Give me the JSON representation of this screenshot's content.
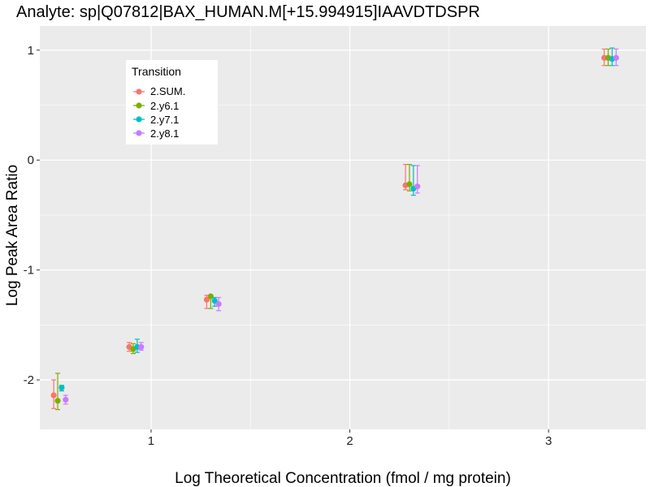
{
  "chart_data": {
    "type": "scatter",
    "title": "Analyte: sp|Q07812|BAX_HUMAN.M[+15.994915]IAAVDTDSPR",
    "xlabel": "Log Theoretical Concentration (fmol / mg protein)",
    "ylabel": "Log Peak Area Ratio",
    "xlim": [
      0.44,
      3.49
    ],
    "ylim": [
      -2.45,
      1.22
    ],
    "x_ticks": [
      1,
      2,
      3
    ],
    "x_tick_labels": [
      "1",
      "2",
      "3"
    ],
    "y_ticks": [
      -2,
      -1,
      0,
      1
    ],
    "y_tick_labels": [
      "-2",
      "-1",
      "0",
      "1"
    ],
    "grid": true,
    "legend": {
      "title": "Transition",
      "position": "top-left",
      "entries": [
        "2.SUM.",
        "2.y6.1",
        "2.y7.1",
        "2.y8.1"
      ]
    },
    "series": [
      {
        "name": "2.SUM.",
        "color": "#F8766D",
        "points": [
          {
            "x": 0.51,
            "y": -2.14,
            "ymin": -2.26,
            "ymax": -2.0
          },
          {
            "x": 0.89,
            "y": -1.7,
            "ymin": -1.74,
            "ymax": -1.66
          },
          {
            "x": 1.28,
            "y": -1.27,
            "ymin": -1.35,
            "ymax": -1.23
          },
          {
            "x": 2.28,
            "y": -0.23,
            "ymin": -0.27,
            "ymax": -0.04
          },
          {
            "x": 3.28,
            "y": 0.93,
            "ymin": 0.86,
            "ymax": 1.01
          }
        ]
      },
      {
        "name": "2.y6.1",
        "color": "#7CAE00",
        "points": [
          {
            "x": 0.53,
            "y": -2.19,
            "ymin": -2.27,
            "ymax": -1.94
          },
          {
            "x": 0.91,
            "y": -1.72,
            "ymin": -1.76,
            "ymax": -1.67
          },
          {
            "x": 1.3,
            "y": -1.24,
            "ymin": -1.35,
            "ymax": -1.23
          },
          {
            "x": 2.3,
            "y": -0.22,
            "ymin": -0.28,
            "ymax": -0.04
          },
          {
            "x": 3.3,
            "y": 0.93,
            "ymin": 0.86,
            "ymax": 1.01
          }
        ]
      },
      {
        "name": "2.y7.1",
        "color": "#00BFC4",
        "points": [
          {
            "x": 0.55,
            "y": -2.07,
            "ymin": -2.1,
            "ymax": -2.05
          },
          {
            "x": 0.93,
            "y": -1.7,
            "ymin": -1.75,
            "ymax": -1.63
          },
          {
            "x": 1.32,
            "y": -1.28,
            "ymin": -1.33,
            "ymax": -1.25
          },
          {
            "x": 2.32,
            "y": -0.26,
            "ymin": -0.32,
            "ymax": -0.05
          },
          {
            "x": 3.32,
            "y": 0.92,
            "ymin": 0.86,
            "ymax": 1.02
          }
        ]
      },
      {
        "name": "2.y8.1",
        "color": "#C77CFF",
        "points": [
          {
            "x": 0.57,
            "y": -2.18,
            "ymin": -2.22,
            "ymax": -2.14
          },
          {
            "x": 0.95,
            "y": -1.7,
            "ymin": -1.73,
            "ymax": -1.66
          },
          {
            "x": 1.34,
            "y": -1.31,
            "ymin": -1.37,
            "ymax": -1.25
          },
          {
            "x": 2.34,
            "y": -0.24,
            "ymin": -0.3,
            "ymax": -0.05
          },
          {
            "x": 3.34,
            "y": 0.93,
            "ymin": 0.86,
            "ymax": 1.01
          }
        ]
      }
    ]
  }
}
